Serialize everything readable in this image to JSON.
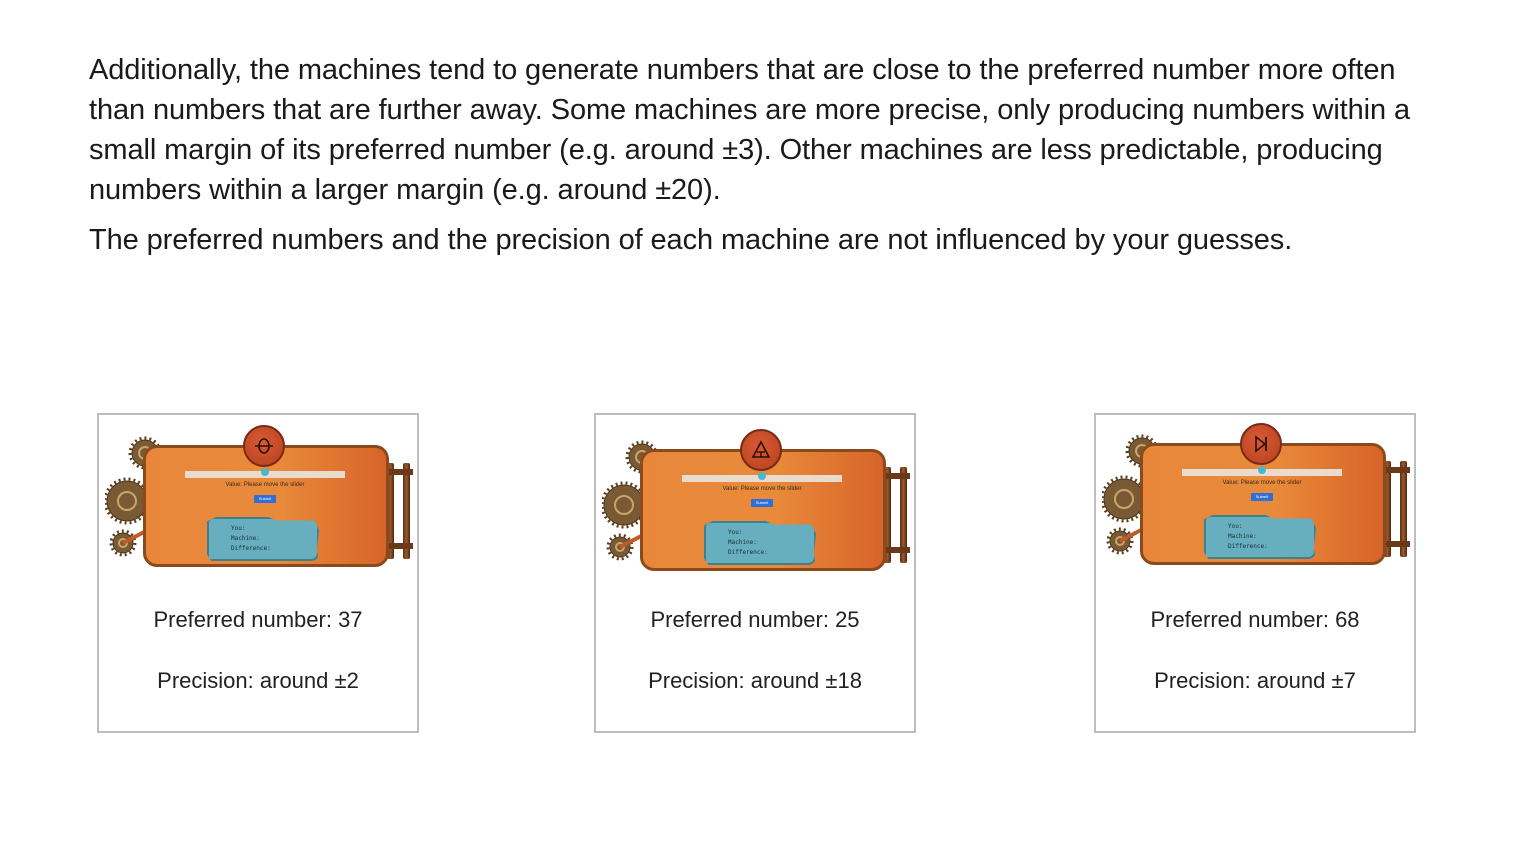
{
  "intro": {
    "paragraph1": "Additionally, the machines tend to generate numbers that are close to the preferred number more often than numbers that are further away. Some machines are more precise, only producing numbers within a small margin of its preferred number (e.g. around ±3). Other machines are less predictable, producing numbers within a larger margin (e.g. around ±20).",
    "paragraph2": "The preferred numbers and the precision of each machine are not influenced by your guesses."
  },
  "machines": [
    {
      "emblem_icon": "theta-circle-icon",
      "slider_label": "Value: Please move the slider",
      "submit_label": "Submit",
      "readout_you": "You:",
      "readout_machine": "Machine:",
      "readout_difference": "Difference:",
      "preferred_label": "Preferred number: 37",
      "precision_label": "Precision: around ±2"
    },
    {
      "emblem_icon": "triangle-icon",
      "slider_label": "Value: Please move the slider",
      "submit_label": "Submit",
      "readout_you": "You:",
      "readout_machine": "Machine:",
      "readout_difference": "Difference:",
      "preferred_label": "Preferred number: 25",
      "precision_label": "Precision: around ±18"
    },
    {
      "emblem_icon": "play-bar-icon",
      "slider_label": "Value: Please move the slider",
      "submit_label": "Submit",
      "readout_you": "You:",
      "readout_machine": "Machine:",
      "readout_difference": "Difference:",
      "preferred_label": "Preferred number: 68",
      "precision_label": "Precision: around ±7"
    }
  ],
  "colors": {
    "panel_orange": "#e8873a",
    "readout_teal": "#67aebf",
    "submit_blue": "#2f6fd6",
    "card_border": "#bdbdbd"
  }
}
